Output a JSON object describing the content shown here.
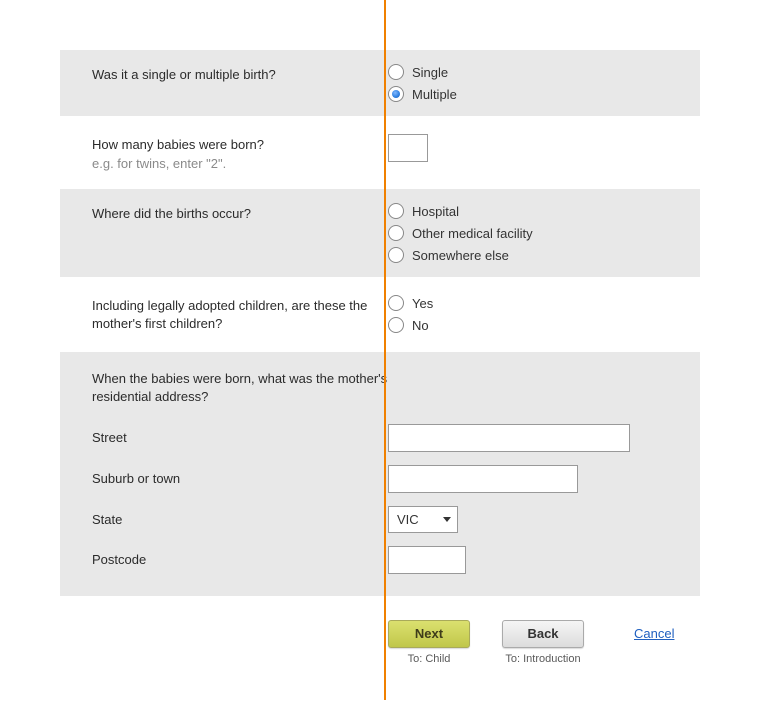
{
  "q_birth_type": {
    "question": "Was it a single or multiple birth?",
    "options": [
      {
        "label": "Single",
        "selected": false
      },
      {
        "label": "Multiple",
        "selected": true
      }
    ]
  },
  "q_baby_count": {
    "question": "How many babies were born?",
    "hint": "e.g. for twins, enter \"2\".",
    "value": ""
  },
  "q_location": {
    "question": "Where did the births occur?",
    "options": [
      {
        "label": "Hospital",
        "selected": false
      },
      {
        "label": "Other medical facility",
        "selected": false
      },
      {
        "label": "Somewhere else",
        "selected": false
      }
    ]
  },
  "q_first_children": {
    "question": "Including legally adopted children, are these the mother's first children?",
    "options": [
      {
        "label": "Yes",
        "selected": false
      },
      {
        "label": "No",
        "selected": false
      }
    ]
  },
  "q_address": {
    "question": "When the babies were born, what was the mother's residential address?",
    "street": {
      "label": "Street",
      "value": ""
    },
    "suburb": {
      "label": "Suburb or town",
      "value": ""
    },
    "state": {
      "label": "State",
      "value": "VIC"
    },
    "postcode": {
      "label": "Postcode",
      "value": ""
    }
  },
  "nav": {
    "next": {
      "label": "Next",
      "caption": "To: Child"
    },
    "back": {
      "label": "Back",
      "caption": "To: Introduction"
    },
    "cancel": "Cancel"
  },
  "styling": {
    "shaded_bg": "#e8e8e8",
    "divider_color": "#f08000",
    "hint_color": "#8a8a8a",
    "text_color": "#333333",
    "radio_selected_color": "#2e7fe0",
    "next_btn_bg": "#c8cf55",
    "back_btn_bg": "#e5e5e5",
    "link_color": "#2060c0"
  }
}
